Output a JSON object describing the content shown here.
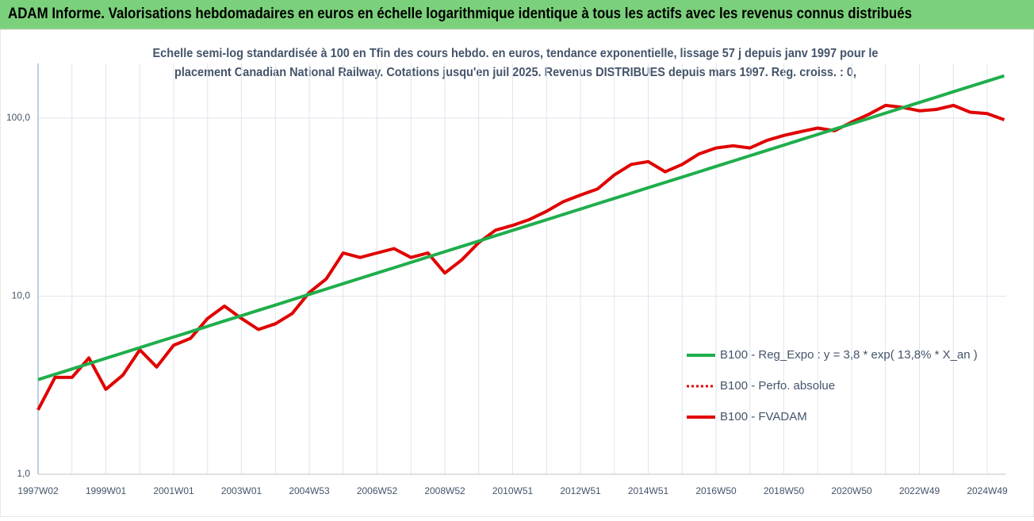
{
  "chart_data": {
    "type": "line",
    "title": "ADAM Informe. Valorisations hebdomadaires en euros en échelle logarithmique identique à tous les actifs avec les revenus connus distribués",
    "subtitle": [
      "Echelle semi-log standardisée à 100 en Tfin des cours hebdo. en euros, tendance exponentielle, lissage 57 j depuis janv 1997 pour le",
      "placement Canadian National Railway. Cotations jusqu'en juil 2025. Revenus DISTRIBUES depuis mars 1997.  Reg. croiss. : 0,"
    ],
    "categories": [
      "1997W02",
      null,
      null,
      null,
      "1999W01",
      null,
      null,
      null,
      "2001W01",
      null,
      null,
      null,
      "2003W01",
      null,
      null,
      null,
      "2004W53",
      null,
      null,
      null,
      "2006W52",
      null,
      null,
      null,
      "2008W52",
      null,
      null,
      null,
      "2010W51",
      null,
      null,
      null,
      "2012W51",
      null,
      null,
      null,
      "2014W51",
      null,
      null,
      null,
      "2016W50",
      null,
      null,
      null,
      "2018W50",
      null,
      null,
      null,
      "2020W50",
      null,
      null,
      null,
      "2022W49",
      null,
      null,
      null,
      "2024W49",
      null
    ],
    "log_scale": true,
    "grid": true,
    "ylim": [
      1,
      203
    ],
    "yticks": [
      {
        "value": 1,
        "label": "1,0"
      },
      {
        "value": 10,
        "label": "10,0"
      },
      {
        "value": 100,
        "label": "100,0"
      }
    ],
    "series": [
      {
        "name": "B100 - Reg_Expo : y = 3,8 * exp( 13,8% *  X_an )",
        "color": "#1fae4c",
        "style": "solid",
        "values": [
          3.4,
          3.64,
          3.9,
          4.18,
          4.48,
          4.8,
          5.14,
          5.51,
          5.9,
          6.32,
          6.77,
          7.26,
          7.77,
          8.33,
          8.92,
          9.56,
          10.24,
          10.97,
          11.76,
          12.6,
          13.5,
          14.46,
          15.49,
          16.6,
          17.78,
          19.05,
          20.41,
          21.87,
          23.43,
          25.1,
          26.89,
          28.81,
          30.87,
          33.07,
          35.43,
          37.96,
          40.67,
          43.57,
          46.68,
          50.02,
          53.59,
          57.41,
          61.51,
          65.9,
          70.61,
          75.65,
          81.05,
          86.83,
          93.03,
          99.67,
          106.8,
          114.4,
          122.6,
          131.3,
          140.7,
          150.7,
          161.5,
          173.0
        ]
      },
      {
        "name": "B100 - Perfo. absolue",
        "color": "#e00000",
        "style": "dotted",
        "values": [
          2.3,
          3.5,
          3.5,
          4.5,
          3.0,
          3.6,
          5.0,
          4.0,
          5.3,
          5.8,
          7.5,
          8.8,
          7.5,
          6.5,
          7.0,
          8.0,
          10.5,
          12.5,
          17.5,
          16.5,
          17.5,
          18.5,
          16.5,
          17.5,
          13.5,
          16.0,
          20.0,
          23.5,
          25.0,
          27.0,
          30.0,
          34.0,
          37.0,
          40.0,
          48.0,
          55.0,
          57.0,
          50.0,
          55.0,
          63.0,
          68.0,
          70.0,
          68.0,
          75.0,
          80.0,
          84.0,
          88.0,
          85.0,
          95.0,
          105.0,
          118.0,
          115.0,
          110.0,
          112.0,
          118.0,
          108.0,
          106.0,
          98.0
        ]
      },
      {
        "name": "B100 - FVADAM",
        "color": "#e00000",
        "style": "solid",
        "values": [
          2.3,
          3.5,
          3.5,
          4.5,
          3.0,
          3.6,
          5.0,
          4.0,
          5.3,
          5.8,
          7.5,
          8.8,
          7.5,
          6.5,
          7.0,
          8.0,
          10.5,
          12.5,
          17.5,
          16.5,
          17.5,
          18.5,
          16.5,
          17.5,
          13.5,
          16.0,
          20.0,
          23.5,
          25.0,
          27.0,
          30.0,
          34.0,
          37.0,
          40.0,
          48.0,
          55.0,
          57.0,
          50.0,
          55.0,
          63.0,
          68.0,
          70.0,
          68.0,
          75.0,
          80.0,
          84.0,
          88.0,
          85.0,
          95.0,
          105.0,
          118.0,
          115.0,
          110.0,
          112.0,
          118.0,
          108.0,
          106.0,
          98.0
        ]
      }
    ]
  }
}
